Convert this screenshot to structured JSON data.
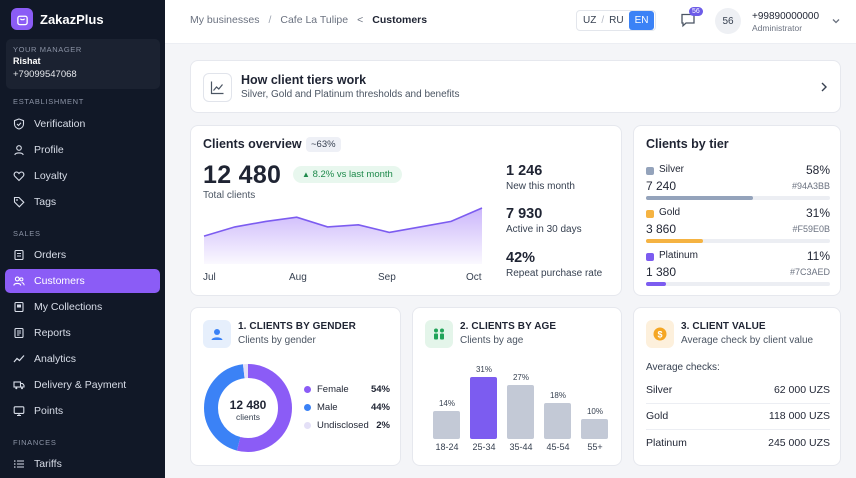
{
  "sidebar": {
    "brand": "ZakazPlus",
    "manager_label": "YOUR MANAGER",
    "manager_name": "Rishat",
    "manager_phone": "+79099547068",
    "sections": [
      "ESTABLISHMENT",
      "SALES",
      "FINANCES"
    ],
    "items": [
      {
        "label": "Verification",
        "icon": "shield-icon"
      },
      {
        "label": "Profile",
        "icon": "user-icon"
      },
      {
        "label": "Loyalty",
        "icon": "heart-icon"
      },
      {
        "label": "Tags",
        "icon": "tag-icon"
      },
      {
        "label": "Orders",
        "icon": "orders-icon"
      },
      {
        "label": "Customers",
        "icon": "users-icon",
        "active": true
      },
      {
        "label": "My Collections",
        "icon": "collections-icon"
      },
      {
        "label": "Reports",
        "icon": "reports-icon"
      },
      {
        "label": "Analytics",
        "icon": "analytics-icon"
      },
      {
        "label": "Delivery & Payment",
        "icon": "truck-icon"
      },
      {
        "label": "Points",
        "icon": "monitor-icon"
      },
      {
        "label": "Tariffs",
        "icon": "list-icon"
      }
    ]
  },
  "header": {
    "breadcrumbs": [
      "My businesses",
      "Cafe La Tulipe",
      "Customers"
    ],
    "breadcrumb_seps": [
      "/",
      "<"
    ],
    "languages": [
      "UZ",
      "RU",
      "EN"
    ],
    "lang_sep": "/",
    "active_language": "EN",
    "chat_badge": "56",
    "avatar_text": "56",
    "user_phone": "+99890000000",
    "user_role": "Administrator"
  },
  "tiers_info": {
    "title": "How client tiers work",
    "subtitle": "Silver, Gold and Platinum thresholds and benefits"
  },
  "overview": {
    "title": "Clients overview",
    "pill": "~63%",
    "total": "12 480",
    "total_label": "Total clients",
    "growth": "8.2% vs last month",
    "x_labels": [
      "Jul",
      "Aug",
      "Sep",
      "Oct"
    ],
    "trend_values": [
      0.33,
      0.55,
      0.68,
      0.78,
      0.55,
      0.6,
      0.42,
      0.55,
      0.68,
      1.0
    ],
    "stats": [
      {
        "value": "1 246",
        "label": "New this month"
      },
      {
        "value": "7 930",
        "label": "Active in 30 days"
      },
      {
        "value": "42%",
        "label": "Repeat purchase rate"
      }
    ]
  },
  "by_tier": {
    "title": "Clients by tier",
    "tiers": [
      {
        "name": "Silver",
        "percent": "58%",
        "count": "7 240",
        "hex": "#94A3BB",
        "color": "#94a3bb",
        "fill": 0.58
      },
      {
        "name": "Gold",
        "percent": "31%",
        "count": "3 860",
        "hex": "#F59E0B",
        "color": "#f5b342",
        "fill": 0.31
      },
      {
        "name": "Platinum",
        "percent": "11%",
        "count": "1 380",
        "hex": "#7C3AED",
        "color": "#7c5cf0",
        "fill": 0.11
      }
    ]
  },
  "gender": {
    "title": "1. CLIENTS BY GENDER",
    "subtitle": "Clients by gender",
    "center_value": "12 480",
    "center_label": "clients",
    "legend": [
      {
        "name": "Female",
        "percent": "54%",
        "color": "#8b5cf6",
        "value": 54
      },
      {
        "name": "Male",
        "percent": "44%",
        "color": "#3b82f6",
        "value": 44
      },
      {
        "name": "Undisclosed",
        "percent": "2%",
        "color": "#e4e0f7",
        "value": 2
      }
    ]
  },
  "age": {
    "title": "2. CLIENTS BY AGE",
    "subtitle": "Clients by age",
    "chart_data": {
      "type": "bar",
      "categories": [
        "18-24",
        "25-34",
        "35-44",
        "45-54",
        "55+"
      ],
      "values": [
        14,
        31,
        27,
        18,
        10
      ],
      "labels": [
        "14%",
        "31%",
        "27%",
        "18%",
        "10%"
      ],
      "highlight": "25-34",
      "colors": {
        "default": "#c3c9d6",
        "highlight": "#7c5cf0"
      }
    }
  },
  "value": {
    "title": "3. CLIENT VALUE",
    "subtitle": "Average check by client value",
    "avg_label": "Average checks:",
    "rows": [
      {
        "tier": "Silver",
        "amount": "62 000 UZS"
      },
      {
        "tier": "Gold",
        "amount": "118 000 UZS"
      },
      {
        "tier": "Platinum",
        "amount": "245 000 UZS"
      }
    ]
  }
}
